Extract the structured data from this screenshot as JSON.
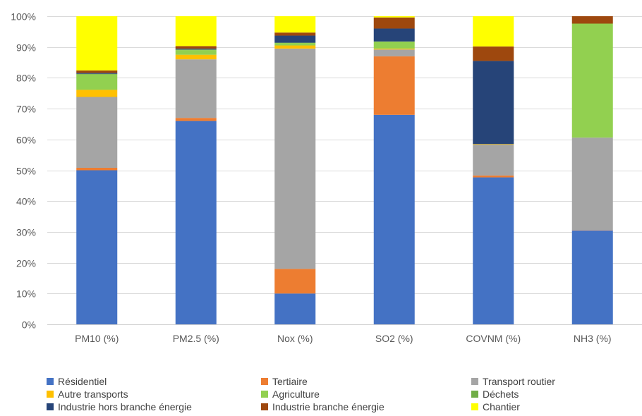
{
  "chart_data": {
    "type": "bar",
    "stacked": true,
    "normalized": true,
    "categories": [
      "PM10 (%)",
      "PM2.5 (%)",
      "Nox (%)",
      "SO2 (%)",
      "COVNM (%)",
      "NH3 (%)"
    ],
    "ylim": [
      0,
      100
    ],
    "yticks": [
      "0%",
      "10%",
      "20%",
      "30%",
      "40%",
      "50%",
      "60%",
      "70%",
      "80%",
      "90%",
      "100%"
    ],
    "grid": true,
    "legend_position": "bottom",
    "series": [
      {
        "name": "Résidentiel",
        "color": "#4472C4",
        "values": [
          50,
          66,
          10,
          68,
          47.7,
          30.5
        ]
      },
      {
        "name": "Tertiaire",
        "color": "#ED7D31",
        "values": [
          0.8,
          1,
          8,
          19,
          0.6,
          0.1
        ]
      },
      {
        "name": "Transport routier",
        "color": "#A5A5A5",
        "values": [
          23,
          19,
          71.5,
          2.2,
          10,
          30
        ]
      },
      {
        "name": "Autre transports",
        "color": "#FFC000",
        "values": [
          2.3,
          1.5,
          1,
          0.3,
          0.2,
          0
        ]
      },
      {
        "name": "Agriculture",
        "color": "#92D050",
        "values": [
          5,
          1.5,
          0.8,
          2.3,
          0,
          37
        ]
      },
      {
        "name": "Déchets",
        "color": "#70AD47",
        "values": [
          0.2,
          0.2,
          0.1,
          0,
          0,
          0
        ]
      },
      {
        "name": "Industrie hors branche énergie",
        "color": "#264478",
        "values": [
          0.3,
          0.3,
          2.3,
          4.2,
          27,
          0
        ]
      },
      {
        "name": "Industrie branche énergie",
        "color": "#9E480E",
        "values": [
          0.8,
          0.8,
          1,
          3.6,
          4.7,
          2.4
        ]
      },
      {
        "name": "Chantier",
        "color": "#FFFF00",
        "values": [
          17.6,
          9.7,
          5.3,
          0.4,
          9.8,
          0
        ]
      }
    ]
  }
}
